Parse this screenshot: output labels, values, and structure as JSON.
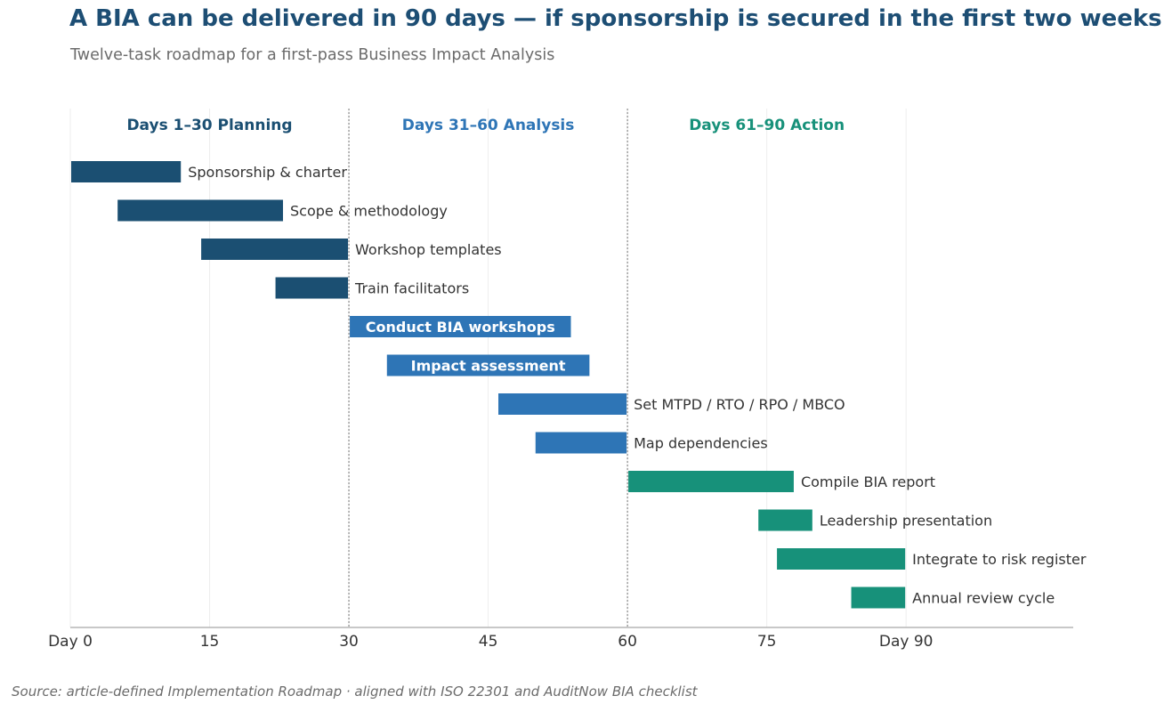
{
  "title": "A BIA can be delivered in 90 days — if sponsorship is secured in the first two weeks",
  "subtitle": "Twelve-task roadmap for a first-pass Business Impact Analysis",
  "source": "Source: article-defined Implementation Roadmap  ·  aligned with ISO 22301 and AuditNow BIA checklist",
  "colors": {
    "planning": "#1b4f72",
    "analysis": "#2e75b6",
    "action": "#17917a",
    "label_text": "#333333",
    "axis": "#999999",
    "grid": "#eeeeee"
  },
  "chart_data": {
    "type": "gantt",
    "title": "A BIA can be delivered in 90 days — if sponsorship is secured in the first two weeks",
    "subtitle": "Twelve-task roadmap for a first-pass Business Impact Analysis",
    "xlim": [
      0,
      108
    ],
    "x_ticks": [
      {
        "value": 0,
        "label": "Day 0"
      },
      {
        "value": 15,
        "label": "15"
      },
      {
        "value": 30,
        "label": "30"
      },
      {
        "value": 45,
        "label": "45"
      },
      {
        "value": 60,
        "label": "60"
      },
      {
        "value": 75,
        "label": "75"
      },
      {
        "value": 90,
        "label": "Day 90"
      }
    ],
    "phase_boundaries": [
      30,
      60
    ],
    "grid": "vertical",
    "phases": [
      {
        "name": "Days 1–30  Planning",
        "start": 0,
        "end": 30,
        "color": "#1b4f72"
      },
      {
        "name": "Days 31–60  Analysis",
        "start": 30,
        "end": 60,
        "color": "#2e75b6"
      },
      {
        "name": "Days 61–90  Action",
        "start": 60,
        "end": 90,
        "color": "#17917a"
      }
    ],
    "tasks": [
      {
        "name": "Sponsorship & charter",
        "start": 0,
        "end": 12,
        "phase": 0,
        "label_inside": false
      },
      {
        "name": "Scope & methodology",
        "start": 5,
        "end": 23,
        "phase": 0,
        "label_inside": false
      },
      {
        "name": "Workshop templates",
        "start": 14,
        "end": 30,
        "phase": 0,
        "label_inside": false
      },
      {
        "name": "Train facilitators",
        "start": 22,
        "end": 30,
        "phase": 0,
        "label_inside": false
      },
      {
        "name": "Conduct BIA workshops",
        "start": 30,
        "end": 54,
        "phase": 1,
        "label_inside": true
      },
      {
        "name": "Impact assessment",
        "start": 34,
        "end": 56,
        "phase": 1,
        "label_inside": true
      },
      {
        "name": "Set MTPD / RTO / RPO / MBCO",
        "start": 46,
        "end": 60,
        "phase": 1,
        "label_inside": false
      },
      {
        "name": "Map dependencies",
        "start": 50,
        "end": 60,
        "phase": 1,
        "label_inside": false
      },
      {
        "name": "Compile BIA report",
        "start": 60,
        "end": 78,
        "phase": 2,
        "label_inside": false
      },
      {
        "name": "Leadership presentation",
        "start": 74,
        "end": 80,
        "phase": 2,
        "label_inside": false
      },
      {
        "name": "Integrate to risk register",
        "start": 76,
        "end": 90,
        "phase": 2,
        "label_inside": false
      },
      {
        "name": "Annual review cycle",
        "start": 84,
        "end": 90,
        "phase": 2,
        "label_inside": false
      }
    ]
  }
}
